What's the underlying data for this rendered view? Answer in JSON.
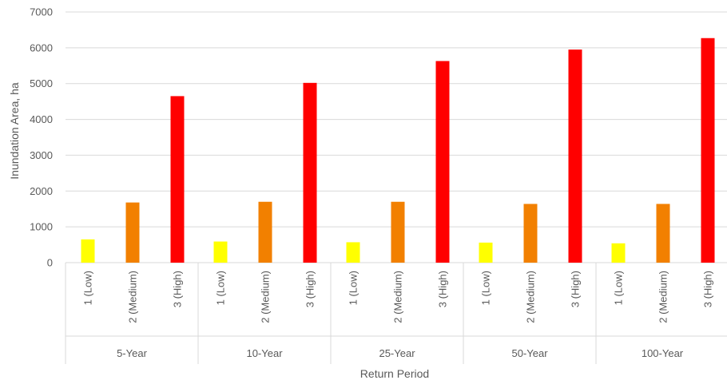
{
  "chart_data": {
    "type": "bar",
    "xlabel": "Return Period",
    "ylabel": "Inundation Area, ha",
    "ylim": [
      0,
      7000
    ],
    "yticks": [
      0,
      1000,
      2000,
      3000,
      4000,
      5000,
      6000,
      7000
    ],
    "grid": true,
    "legend": "none",
    "groups": [
      "5-Year",
      "10-Year",
      "25-Year",
      "50-Year",
      "100-Year"
    ],
    "categories": [
      "1 (Low)",
      "2 (Medium)",
      "3 (High)"
    ],
    "colors": [
      "#FFFF00",
      "#F28000",
      "#FF0000"
    ],
    "values": [
      [
        650,
        1680,
        4650
      ],
      [
        590,
        1700,
        5020
      ],
      [
        570,
        1700,
        5630
      ],
      [
        560,
        1640,
        5950
      ],
      [
        540,
        1640,
        6270
      ]
    ]
  }
}
